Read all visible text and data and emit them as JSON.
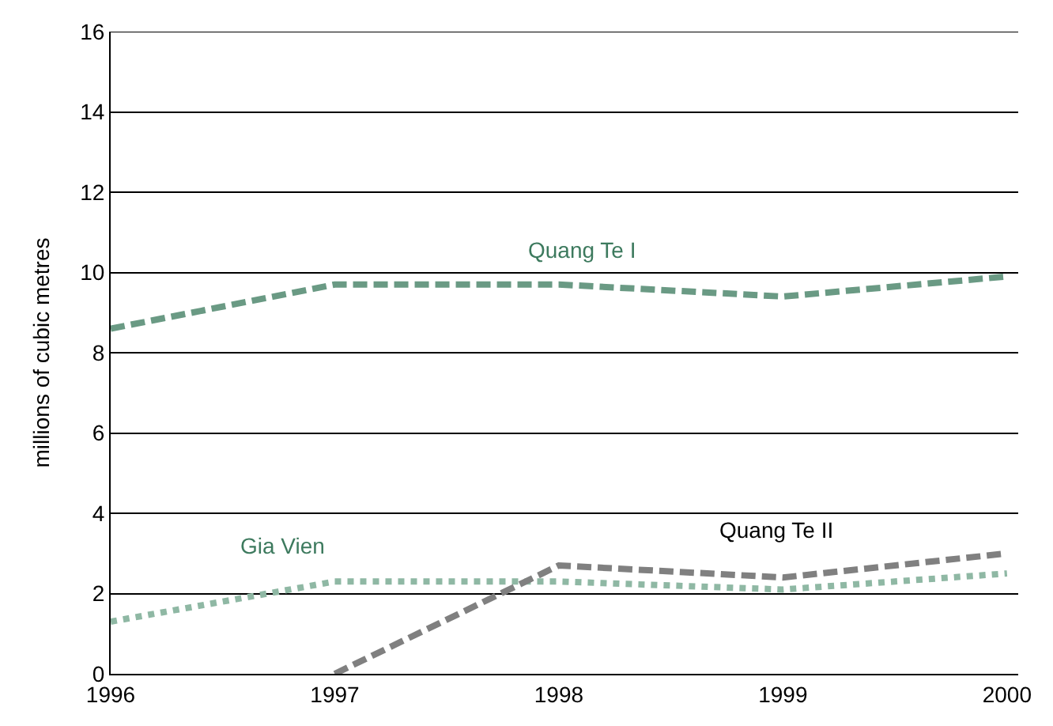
{
  "chart_data": {
    "type": "line",
    "ylabel": "millions of cubic metres",
    "x": [
      1996,
      1997,
      1998,
      1999,
      2000
    ],
    "series": [
      {
        "name": "Quang Te I",
        "color": "#6a9a84",
        "line_style": "dashed",
        "values": [
          8.6,
          9.7,
          9.7,
          9.4,
          9.9
        ]
      },
      {
        "name": "Gia Vien",
        "color": "#8fb8a4",
        "line_style": "dotted",
        "values": [
          1.3,
          2.3,
          2.3,
          2.1,
          2.5
        ]
      },
      {
        "name": "Quang Te II",
        "color": "#808080",
        "line_style": "dashed",
        "values": [
          null,
          0,
          2.7,
          2.4,
          3.0
        ]
      }
    ],
    "xlim": [
      1996,
      2000.05
    ],
    "xticks": [
      1996,
      1997,
      1998,
      1999,
      2000
    ],
    "ylim": [
      0,
      16
    ],
    "yticks": [
      0,
      2,
      4,
      6,
      8,
      10,
      12,
      14,
      16
    ],
    "grid": "y",
    "legend": false,
    "marker": "none"
  }
}
